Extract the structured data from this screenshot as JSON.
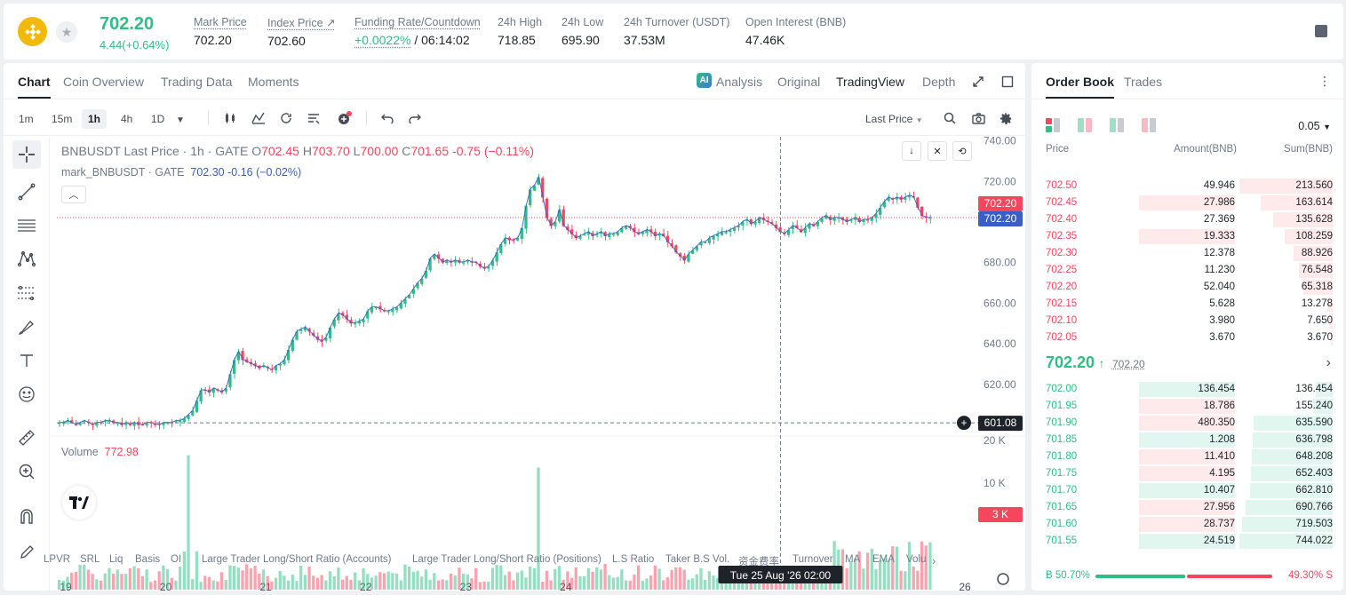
{
  "ticker": {
    "last_price": "702.20",
    "change": "4.44(+0.64%)",
    "stats": [
      {
        "label": "Mark Price",
        "value": "702.20"
      },
      {
        "label": "Index Price ↗",
        "value": "702.60"
      },
      {
        "label": "Funding Rate/Countdown",
        "value_green": "+0.0022%",
        "value": " / 06:14:02"
      },
      {
        "label": "24h High",
        "value": "718.85"
      },
      {
        "label": "24h Low",
        "value": "695.90"
      },
      {
        "label": "24h Turnover (USDT)",
        "value": "37.53M"
      },
      {
        "label": "Open Interest (BNB)",
        "value": "47.46K"
      }
    ]
  },
  "chart_tabs": [
    "Chart",
    "Coin Overview",
    "Trading Data",
    "Moments"
  ],
  "view_tabs": [
    "Analysis",
    "Original",
    "TradingView",
    "Depth"
  ],
  "timeframes": [
    "1m",
    "15m",
    "1h",
    "4h",
    "1D"
  ],
  "price_type": "Last Price",
  "legend": {
    "symbol": "BNBUSDT Last Price · 1h · GATE",
    "o_label": "O",
    "o": "702.45",
    "h_label": "H",
    "h": "703.70",
    "l_label": "L",
    "l": "700.00",
    "c_label": "C",
    "c": "701.65",
    "chg": "-0.75 (−0.11%)",
    "mark_label": "mark_BNBUSDT · GATE",
    "mark_val": "702.30",
    "mark_chg": "-0.16 (−0.02%)",
    "volume_label": "Volume",
    "volume_val": "772.98"
  },
  "price_tags": {
    "last": "702.20",
    "mark": "702.20",
    "cursor": "601.08",
    "vol_cursor": "3 K"
  },
  "crosshair_time": "Tue 25 Aug '26   02:00",
  "bottom_tips": [
    "LPVR",
    "SRL",
    "Liq",
    "Basis",
    "OI",
    "Large Trader Long/Short Ratio (Accounts)",
    "Large Trader Long/Short Ratio (Positions)",
    "L.S Ratio",
    "Taker B.S Vol.",
    "资金费率",
    "Turnover",
    "MA",
    "EMA",
    "Volu"
  ],
  "chart_data": {
    "type": "candlestick",
    "title": "BNBUSDT Last Price · 1h · GATE",
    "price_ticks": [
      740,
      720,
      700,
      680,
      660,
      640,
      620
    ],
    "volume_ticks": [
      "20 K",
      "10 K"
    ],
    "x_ticks": [
      "19",
      "20",
      "21",
      "22",
      "23",
      "24",
      "26"
    ],
    "ylim": [
      595,
      742
    ],
    "close_series": [
      601,
      601,
      602,
      601,
      600,
      601,
      602,
      601,
      600,
      601,
      601,
      602,
      602,
      601,
      601,
      600,
      601,
      600,
      601,
      600,
      600,
      601,
      601,
      600,
      600,
      601,
      601,
      601,
      602,
      602,
      603,
      605,
      607,
      612,
      617,
      617,
      616,
      618,
      617,
      616,
      618,
      625,
      632,
      636,
      632,
      631,
      630,
      629,
      628,
      629,
      628,
      627,
      629,
      630,
      632,
      637,
      642,
      646,
      647,
      648,
      646,
      644,
      642,
      641,
      643,
      648,
      652,
      655,
      654,
      652,
      650,
      650,
      651,
      652,
      656,
      658,
      658,
      657,
      656,
      656,
      657,
      658,
      660,
      662,
      664,
      667,
      670,
      672,
      676,
      682,
      684,
      682,
      680,
      681,
      680,
      681,
      680,
      680,
      681,
      680,
      680,
      678,
      677,
      678,
      681,
      685,
      689,
      692,
      691,
      691,
      692,
      697,
      708,
      716,
      718,
      722,
      712,
      702,
      698,
      700,
      706,
      698,
      696,
      694,
      692,
      693,
      694,
      695,
      693,
      694,
      695,
      693,
      694,
      694,
      695,
      697,
      698,
      697,
      695,
      694,
      695,
      696,
      695,
      693,
      694,
      693,
      690,
      688,
      685,
      683,
      681,
      684,
      686,
      688,
      690,
      690,
      692,
      693,
      694,
      695,
      695,
      696,
      697,
      698,
      700,
      701,
      699,
      700,
      702,
      701,
      700,
      699,
      697,
      695,
      694,
      696,
      698,
      697,
      695,
      697,
      699,
      698,
      700,
      702,
      703,
      701,
      702,
      702,
      701,
      700,
      701,
      702,
      700,
      701,
      701,
      702,
      704,
      707,
      710,
      712,
      711,
      712,
      711,
      712,
      713,
      712,
      707,
      703,
      702,
      702
    ]
  },
  "orderbook": {
    "tabs": [
      "Order Book",
      "Trades"
    ],
    "precision": "0.05",
    "headers": [
      "Price",
      "Amount(BNB)",
      "Sum(BNB)"
    ],
    "asks": [
      {
        "p": "702.50",
        "a": "49.946",
        "s": "213.560",
        "aw": 0.0,
        "sw": 1.0
      },
      {
        "p": "702.45",
        "a": "27.986",
        "s": "163.614",
        "aw": 0.53,
        "sw": 0.77
      },
      {
        "p": "702.40",
        "a": "27.369",
        "s": "135.628",
        "aw": 0.0,
        "sw": 0.64
      },
      {
        "p": "702.35",
        "a": "19.333",
        "s": "108.259",
        "aw": 0.48,
        "sw": 0.51
      },
      {
        "p": "702.30",
        "a": "12.378",
        "s": "88.926",
        "aw": 0.0,
        "sw": 0.42
      },
      {
        "p": "702.25",
        "a": "11.230",
        "s": "76.548",
        "aw": 0.0,
        "sw": 0.36
      },
      {
        "p": "702.20",
        "a": "52.040",
        "s": "65.318",
        "aw": 0.0,
        "sw": 0.31
      },
      {
        "p": "702.15",
        "a": "5.628",
        "s": "13.278",
        "aw": 0.0,
        "sw": 0.06
      },
      {
        "p": "702.10",
        "a": "3.980",
        "s": "7.650",
        "aw": 0.0,
        "sw": 0.04
      },
      {
        "p": "702.05",
        "a": "3.670",
        "s": "3.670",
        "aw": 0.0,
        "sw": 0.02
      }
    ],
    "mid_price": "702.20",
    "mid_mark": "702.20",
    "bids": [
      {
        "p": "702.00",
        "a": "136.454",
        "s": "136.454",
        "sw": 0.18
      },
      {
        "p": "701.95",
        "a": "18.786",
        "s": "155.240",
        "sw": 0.21
      },
      {
        "p": "701.90",
        "a": "480.350",
        "s": "635.590",
        "sw": 0.85
      },
      {
        "p": "701.85",
        "a": "1.208",
        "s": "636.798",
        "sw": 0.86
      },
      {
        "p": "701.80",
        "a": "11.410",
        "s": "648.208",
        "sw": 0.87
      },
      {
        "p": "701.75",
        "a": "4.195",
        "s": "652.403",
        "sw": 0.88
      },
      {
        "p": "701.70",
        "a": "10.407",
        "s": "662.810",
        "sw": 0.89
      },
      {
        "p": "701.65",
        "a": "27.956",
        "s": "690.766",
        "sw": 0.93
      },
      {
        "p": "701.60",
        "a": "28.737",
        "s": "719.503",
        "sw": 0.97
      },
      {
        "p": "701.55",
        "a": "24.519",
        "s": "744.022",
        "sw": 1.0
      }
    ],
    "buy_ratio": "B 50.70%",
    "sell_ratio": "49.30% S",
    "buy_fraction": 0.507
  },
  "colors": {
    "up": "#2ebd85",
    "down": "#f6465d",
    "mark": "#3a5dc7"
  }
}
